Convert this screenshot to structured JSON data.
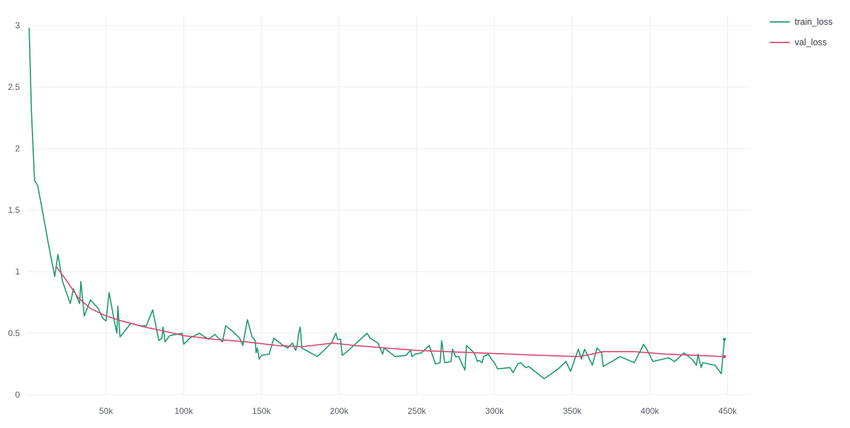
{
  "chart_data": {
    "type": "line",
    "title": "",
    "xlabel": "",
    "ylabel": "",
    "xlim": [
      0,
      465000
    ],
    "ylim": [
      0,
      3.08
    ],
    "grid": true,
    "legend_position": "top-right",
    "x_ticks": [
      50000,
      100000,
      150000,
      200000,
      250000,
      300000,
      350000,
      400000,
      450000
    ],
    "x_tick_labels": [
      "50k",
      "100k",
      "150k",
      "200k",
      "250k",
      "300k",
      "350k",
      "400k",
      "450k"
    ],
    "y_ticks": [
      0,
      0.5,
      1,
      1.5,
      2,
      2.5,
      3
    ],
    "y_tick_labels": [
      "0",
      "0.5",
      "1",
      "1.5",
      "2",
      "2.5",
      "3"
    ],
    "series": [
      {
        "name": "train_loss",
        "color": "#1a9a6c",
        "end_marker": true,
        "points": [
          [
            500,
            2.98
          ],
          [
            2000,
            2.3
          ],
          [
            4000,
            1.74
          ],
          [
            6000,
            1.7
          ],
          [
            9000,
            1.5
          ],
          [
            13000,
            1.22
          ],
          [
            17000,
            0.96
          ],
          [
            19000,
            1.14
          ],
          [
            22000,
            0.92
          ],
          [
            27000,
            0.74
          ],
          [
            29000,
            0.86
          ],
          [
            33000,
            0.74
          ],
          [
            33800,
            0.92
          ],
          [
            36000,
            0.64
          ],
          [
            40000,
            0.77
          ],
          [
            45000,
            0.7
          ],
          [
            48000,
            0.62
          ],
          [
            50000,
            0.6
          ],
          [
            52000,
            0.83
          ],
          [
            55000,
            0.62
          ],
          [
            57000,
            0.5
          ],
          [
            57600,
            0.72
          ],
          [
            59000,
            0.47
          ],
          [
            66000,
            0.58
          ],
          [
            72000,
            0.56
          ],
          [
            76000,
            0.56
          ],
          [
            80000,
            0.69
          ],
          [
            84000,
            0.44
          ],
          [
            86000,
            0.46
          ],
          [
            86700,
            0.55
          ],
          [
            88000,
            0.43
          ],
          [
            91000,
            0.48
          ],
          [
            99000,
            0.5
          ],
          [
            100000,
            0.41
          ],
          [
            104000,
            0.46
          ],
          [
            110000,
            0.5
          ],
          [
            116000,
            0.45
          ],
          [
            120000,
            0.49
          ],
          [
            125000,
            0.43
          ],
          [
            127000,
            0.56
          ],
          [
            131000,
            0.52
          ],
          [
            136000,
            0.46
          ],
          [
            138000,
            0.4
          ],
          [
            141000,
            0.61
          ],
          [
            144000,
            0.47
          ],
          [
            146000,
            0.44
          ],
          [
            146600,
            0.34
          ],
          [
            147400,
            0.38
          ],
          [
            148600,
            0.29
          ],
          [
            150000,
            0.32
          ],
          [
            155000,
            0.33
          ],
          [
            158000,
            0.46
          ],
          [
            164000,
            0.4
          ],
          [
            167000,
            0.38
          ],
          [
            170000,
            0.42
          ],
          [
            172000,
            0.36
          ],
          [
            173000,
            0.4
          ],
          [
            174000,
            0.5
          ],
          [
            175000,
            0.55
          ],
          [
            176000,
            0.38
          ],
          [
            186000,
            0.31
          ],
          [
            195000,
            0.42
          ],
          [
            198000,
            0.5
          ],
          [
            199000,
            0.45
          ],
          [
            201000,
            0.45
          ],
          [
            202000,
            0.32
          ],
          [
            206000,
            0.36
          ],
          [
            218000,
            0.5
          ],
          [
            220000,
            0.46
          ],
          [
            225000,
            0.42
          ],
          [
            228000,
            0.33
          ],
          [
            229000,
            0.38
          ],
          [
            236000,
            0.31
          ],
          [
            243000,
            0.32
          ],
          [
            246000,
            0.36
          ],
          [
            247000,
            0.31
          ],
          [
            249000,
            0.33
          ],
          [
            253000,
            0.34
          ],
          [
            258000,
            0.4
          ],
          [
            262000,
            0.25
          ],
          [
            265000,
            0.26
          ],
          [
            266000,
            0.44
          ],
          [
            268000,
            0.26
          ],
          [
            272000,
            0.27
          ],
          [
            273000,
            0.37
          ],
          [
            275000,
            0.31
          ],
          [
            277000,
            0.31
          ],
          [
            281000,
            0.2
          ],
          [
            282000,
            0.4
          ],
          [
            287000,
            0.34
          ],
          [
            289000,
            0.27
          ],
          [
            290000,
            0.28
          ],
          [
            292000,
            0.26
          ],
          [
            293000,
            0.31
          ],
          [
            296000,
            0.33
          ],
          [
            298000,
            0.29
          ],
          [
            300000,
            0.26
          ],
          [
            302000,
            0.21
          ],
          [
            310000,
            0.22
          ],
          [
            312000,
            0.18
          ],
          [
            315000,
            0.25
          ],
          [
            317000,
            0.26
          ],
          [
            320000,
            0.22
          ],
          [
            322000,
            0.23
          ],
          [
            332000,
            0.13
          ],
          [
            341000,
            0.21
          ],
          [
            346000,
            0.27
          ],
          [
            349000,
            0.19
          ],
          [
            354000,
            0.37
          ],
          [
            356000,
            0.29
          ],
          [
            358000,
            0.37
          ],
          [
            363000,
            0.24
          ],
          [
            366000,
            0.38
          ],
          [
            369000,
            0.34
          ],
          [
            370000,
            0.23
          ],
          [
            381000,
            0.31
          ],
          [
            390000,
            0.26
          ],
          [
            396000,
            0.41
          ],
          [
            398000,
            0.37
          ],
          [
            402000,
            0.27
          ],
          [
            412000,
            0.3
          ],
          [
            416000,
            0.27
          ],
          [
            422000,
            0.34
          ],
          [
            427000,
            0.29
          ],
          [
            430000,
            0.24
          ],
          [
            431000,
            0.33
          ],
          [
            433000,
            0.22
          ],
          [
            434000,
            0.26
          ],
          [
            442000,
            0.24
          ],
          [
            446000,
            0.17
          ],
          [
            448000,
            0.45
          ]
        ]
      },
      {
        "name": "val_loss",
        "color": "#d9456c",
        "end_marker": true,
        "points": [
          [
            18000,
            1.04
          ],
          [
            25000,
            0.92
          ],
          [
            32000,
            0.79
          ],
          [
            40000,
            0.7
          ],
          [
            50000,
            0.64
          ],
          [
            60000,
            0.6
          ],
          [
            75000,
            0.55
          ],
          [
            90000,
            0.51
          ],
          [
            100000,
            0.48
          ],
          [
            120000,
            0.45
          ],
          [
            140000,
            0.43
          ],
          [
            160000,
            0.4
          ],
          [
            176000,
            0.39
          ],
          [
            196000,
            0.42
          ],
          [
            210000,
            0.4
          ],
          [
            230000,
            0.38
          ],
          [
            250000,
            0.36
          ],
          [
            270000,
            0.35
          ],
          [
            290000,
            0.34
          ],
          [
            310000,
            0.33
          ],
          [
            330000,
            0.32
          ],
          [
            355000,
            0.31
          ],
          [
            370000,
            0.35
          ],
          [
            390000,
            0.35
          ],
          [
            410000,
            0.33
          ],
          [
            430000,
            0.32
          ],
          [
            448000,
            0.31
          ]
        ]
      }
    ]
  }
}
